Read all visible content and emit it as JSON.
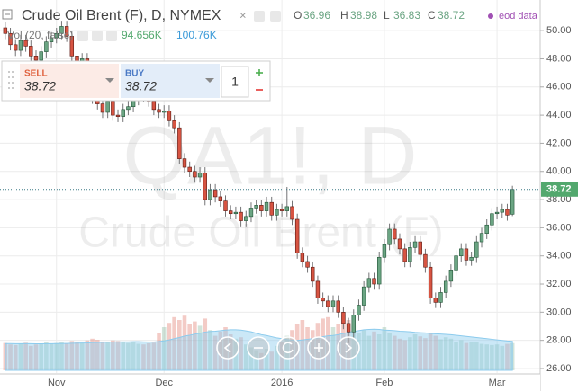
{
  "chart_data": {
    "type": "candlestick",
    "title": "Crude Oil Brent (F), D, NYMEX",
    "ohlc_labels": [
      "O",
      "H",
      "L",
      "C"
    ],
    "source": "eod data",
    "watermark": "QA1!, D",
    "watermark_subtitle": "Crude Oil Brent (F)",
    "categories": [
      null,
      null,
      null,
      null,
      null,
      null,
      null,
      null,
      null,
      null,
      "Nov",
      null,
      null,
      null,
      null,
      null,
      null,
      null,
      null,
      null,
      null,
      null,
      null,
      null,
      null,
      null,
      null,
      null,
      null,
      null,
      null,
      "Dec",
      null,
      null,
      null,
      null,
      null,
      null,
      null,
      null,
      null,
      null,
      null,
      null,
      null,
      null,
      null,
      null,
      null,
      null,
      null,
      null,
      null,
      null,
      "2016",
      null,
      null,
      null,
      null,
      null,
      null,
      null,
      null,
      null,
      null,
      null,
      null,
      null,
      null,
      null,
      null,
      null,
      null,
      null,
      "Feb",
      null,
      null,
      null,
      null,
      null,
      null,
      null,
      null,
      null,
      null,
      null,
      null,
      null,
      null,
      null,
      null,
      null,
      null,
      null,
      null,
      null,
      "Mar",
      null,
      null,
      null
    ],
    "open": [
      50.2,
      49.8,
      49.0,
      48.6,
      49.3,
      48.9,
      48.2,
      47.9,
      48.5,
      49.2,
      49.5,
      49.8,
      50.3,
      49.6,
      48.2,
      47.4,
      48.0,
      46.8,
      45.2,
      44.8,
      44.2,
      45.0,
      44.0,
      43.9,
      44.4,
      44.6,
      45.1,
      45.6,
      45.3,
      45.0,
      44.4,
      44.2,
      44.3,
      43.6,
      43.1,
      40.9,
      40.3,
      40.0,
      39.6,
      39.9,
      38.0,
      38.7,
      38.2,
      37.9,
      37.2,
      37.0,
      37.1,
      36.5,
      36.8,
      37.4,
      37.6,
      37.2,
      37.8,
      36.9,
      37.3,
      37.2,
      37.5,
      36.6,
      34.2,
      33.6,
      33.2,
      32.2,
      31.0,
      30.8,
      30.4,
      30.8,
      30.0,
      29.2,
      28.6,
      29.8,
      30.5,
      31.8,
      32.4,
      32.0,
      33.9,
      34.8,
      35.9,
      35.2,
      34.5,
      33.6,
      34.6,
      35.0,
      34.1,
      33.2,
      31.0,
      30.7,
      31.4,
      32.2,
      33.0,
      34.0,
      34.5,
      33.7,
      33.9,
      35.0,
      35.6,
      36.2,
      37.0,
      37.1,
      37.3,
      36.96
    ],
    "high": [
      50.6,
      50.2,
      49.4,
      49.7,
      49.7,
      49.3,
      48.6,
      48.9,
      49.6,
      49.9,
      50.2,
      50.7,
      50.7,
      50.0,
      48.6,
      48.4,
      48.4,
      47.2,
      45.6,
      45.2,
      45.4,
      45.4,
      44.4,
      44.8,
      45.0,
      45.5,
      46.0,
      46.0,
      45.7,
      45.4,
      44.8,
      44.7,
      44.7,
      44.0,
      43.5,
      41.3,
      40.7,
      40.4,
      40.3,
      40.3,
      39.1,
      39.1,
      38.6,
      38.3,
      37.6,
      37.5,
      37.5,
      37.2,
      37.8,
      38.0,
      38.0,
      38.2,
      38.2,
      37.7,
      37.7,
      38.9,
      37.9,
      37.0,
      34.6,
      34.0,
      33.6,
      32.6,
      31.4,
      31.2,
      31.2,
      31.2,
      30.4,
      29.6,
      30.2,
      30.9,
      32.2,
      32.8,
      32.8,
      34.3,
      35.2,
      36.3,
      36.3,
      35.6,
      34.9,
      35.0,
      35.4,
      35.4,
      34.5,
      33.6,
      31.4,
      31.8,
      32.6,
      33.4,
      34.4,
      34.9,
      34.9,
      34.3,
      35.4,
      36.0,
      36.6,
      37.4,
      37.5,
      37.7,
      37.7,
      38.98
    ],
    "low": [
      49.4,
      48.6,
      48.2,
      48.2,
      48.5,
      47.8,
      47.5,
      47.5,
      48.1,
      48.8,
      49.1,
      49.4,
      49.2,
      47.8,
      47.0,
      47.0,
      46.4,
      44.8,
      44.4,
      43.8,
      43.8,
      43.6,
      43.5,
      43.5,
      44.0,
      44.2,
      44.7,
      44.9,
      44.6,
      44.0,
      43.8,
      43.8,
      43.2,
      42.7,
      40.5,
      39.9,
      39.6,
      39.2,
      39.2,
      37.6,
      37.6,
      37.8,
      37.5,
      36.8,
      36.6,
      36.6,
      36.1,
      36.1,
      36.4,
      37.0,
      36.8,
      36.8,
      36.5,
      36.5,
      36.8,
      36.8,
      36.2,
      33.8,
      33.2,
      32.8,
      31.8,
      30.6,
      30.4,
      30.0,
      30.0,
      29.6,
      28.8,
      27.8,
      28.2,
      29.4,
      30.1,
      31.4,
      31.6,
      31.6,
      33.5,
      34.4,
      34.8,
      34.1,
      33.2,
      33.2,
      34.2,
      33.7,
      32.8,
      30.6,
      30.3,
      30.3,
      31.0,
      31.8,
      32.6,
      33.6,
      33.3,
      33.3,
      33.5,
      34.6,
      35.2,
      35.8,
      36.6,
      36.7,
      36.5,
      36.83
    ],
    "close": [
      49.8,
      49.0,
      48.6,
      49.3,
      48.9,
      48.2,
      47.9,
      48.5,
      49.2,
      49.5,
      49.8,
      50.3,
      49.6,
      48.2,
      47.4,
      48.0,
      46.8,
      45.2,
      44.8,
      44.2,
      45.0,
      44.0,
      43.9,
      44.4,
      44.6,
      45.1,
      45.6,
      45.3,
      45.0,
      44.4,
      44.2,
      44.3,
      43.6,
      43.1,
      40.9,
      40.3,
      40.0,
      39.6,
      39.9,
      38.0,
      38.7,
      38.2,
      37.9,
      37.2,
      37.0,
      37.1,
      36.5,
      36.8,
      37.4,
      37.6,
      37.2,
      37.8,
      36.9,
      37.3,
      37.2,
      37.5,
      36.6,
      34.2,
      33.6,
      33.2,
      32.2,
      31.0,
      30.8,
      30.4,
      30.8,
      30.0,
      29.2,
      28.6,
      29.8,
      30.5,
      31.8,
      32.4,
      32.0,
      33.9,
      34.8,
      35.9,
      35.2,
      34.5,
      33.6,
      34.6,
      35.0,
      34.1,
      33.2,
      31.0,
      30.7,
      31.4,
      32.2,
      33.0,
      34.0,
      34.5,
      33.7,
      33.9,
      35.0,
      35.6,
      36.2,
      37.0,
      37.1,
      37.3,
      36.9,
      38.72
    ],
    "up_color": "#6ba583",
    "down_color": "#d75442",
    "up_border": "#225437",
    "down_border": "#5b1a13",
    "wick_color": "#737375",
    "last_price_color": "#53a86e",
    "ylim": [
      25.68,
      52.18
    ],
    "yticks": [
      {
        "value": 26,
        "label": "26.00"
      },
      {
        "value": 28,
        "label": "28.00"
      },
      {
        "value": 30,
        "label": "30.00"
      },
      {
        "value": 32,
        "label": "32.00"
      },
      {
        "value": 34,
        "label": "34.00"
      },
      {
        "value": 36,
        "label": "36.00"
      },
      {
        "value": 38,
        "label": "38.00"
      },
      {
        "value": 40,
        "label": "40.00"
      },
      {
        "value": 42,
        "label": "42.00"
      },
      {
        "value": 44,
        "label": "44.00"
      },
      {
        "value": 46,
        "label": "46.00"
      },
      {
        "value": 48,
        "label": "48.00"
      },
      {
        "value": 50,
        "label": "50.00"
      }
    ],
    "grid": true,
    "volume": {
      "label": "Vol (20, false)",
      "values": [
        95000,
        90000,
        88000,
        92000,
        96000,
        85000,
        90000,
        93000,
        97000,
        92000,
        95000,
        98000,
        94000,
        102000,
        99000,
        96000,
        104000,
        110000,
        106000,
        100000,
        98000,
        104000,
        102000,
        97000,
        95000,
        100000,
        92000,
        90000,
        94000,
        96000,
        130000,
        150000,
        165000,
        185000,
        175000,
        190000,
        160000,
        170000,
        155000,
        180000,
        140000,
        120000,
        135000,
        150000,
        125000,
        110000,
        115000,
        90000,
        80000,
        70000,
        60000,
        75000,
        65000,
        85000,
        100000,
        120000,
        140000,
        160000,
        175000,
        150000,
        140000,
        165000,
        180000,
        185000,
        150000,
        160000,
        190000,
        175000,
        155000,
        130000,
        140000,
        120000,
        135000,
        125000,
        150000,
        130000,
        120000,
        110000,
        105000,
        115000,
        125000,
        118000,
        112000,
        130000,
        120000,
        108000,
        115000,
        110000,
        100000,
        105000,
        95000,
        100000,
        98000,
        92000,
        90000,
        88000,
        90000,
        85000,
        92000,
        94656
      ],
      "last_label": "94.656K",
      "ma": [
        93000,
        93000,
        92500,
        92500,
        93000,
        92500,
        92000,
        92000,
        92500,
        92500,
        93000,
        93500,
        93500,
        94000,
        94500,
        95000,
        95500,
        96500,
        97000,
        97500,
        98000,
        98500,
        99000,
        99000,
        99000,
        99500,
        99500,
        99000,
        98500,
        98500,
        100000,
        102500,
        106000,
        110000,
        114000,
        119000,
        122000,
        126000,
        129000,
        133000,
        135000,
        136000,
        138000,
        140000,
        141000,
        141000,
        140000,
        137000,
        134000,
        129000,
        124000,
        121000,
        117000,
        113000,
        110000,
        107000,
        105000,
        104000,
        106000,
        108000,
        110000,
        113000,
        117000,
        120000,
        121000,
        124000,
        128000,
        132000,
        135000,
        138000,
        141000,
        142000,
        143000,
        142000,
        140000,
        139000,
        138000,
        136000,
        135000,
        134000,
        132000,
        131000,
        130000,
        128000,
        127000,
        126000,
        125000,
        124000,
        122000,
        120000,
        118000,
        116000,
        114000,
        112000,
        110000,
        108000,
        106000,
        104000,
        102000,
        100760
      ],
      "ma_last_label": "100.76K",
      "ma_color": "#8ccbed"
    }
  },
  "trade_panel": {
    "sell_label": "SELL",
    "buy_label": "BUY",
    "quantity": 1
  }
}
